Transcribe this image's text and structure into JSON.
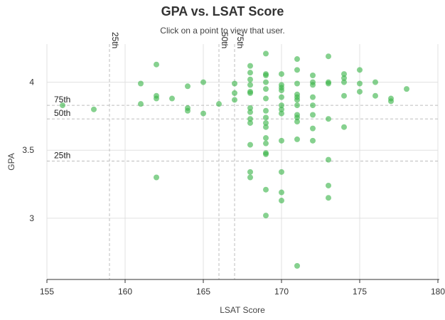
{
  "chart_data": {
    "type": "scatter",
    "title": "GPA vs. LSAT Score",
    "subtitle": "Click on a point to view that user.",
    "xlabel": "LSAT Score",
    "ylabel": "GPA",
    "xlim": [
      155,
      180
    ],
    "ylim": [
      2.55,
      4.28
    ],
    "xticks": [
      155,
      160,
      165,
      170,
      175,
      180
    ],
    "yticks": [
      3,
      3.5,
      4
    ],
    "grid": true,
    "point_color": "#3cb44b",
    "reference_lines": {
      "vertical": [
        {
          "label": "25th",
          "value": 159
        },
        {
          "label": "50th",
          "value": 166
        },
        {
          "label": "75th",
          "value": 167
        }
      ],
      "horizontal": [
        {
          "label": "75th",
          "value": 3.83
        },
        {
          "label": "50th",
          "value": 3.73
        },
        {
          "label": "25th",
          "value": 3.42
        }
      ]
    },
    "points": [
      {
        "x": 156,
        "y": 3.83
      },
      {
        "x": 158,
        "y": 3.8
      },
      {
        "x": 161,
        "y": 3.99
      },
      {
        "x": 161,
        "y": 3.84
      },
      {
        "x": 162,
        "y": 4.13
      },
      {
        "x": 162,
        "y": 3.9
      },
      {
        "x": 162,
        "y": 3.88
      },
      {
        "x": 162,
        "y": 3.3
      },
      {
        "x": 163,
        "y": 3.88
      },
      {
        "x": 164,
        "y": 3.97
      },
      {
        "x": 164,
        "y": 3.81
      },
      {
        "x": 164,
        "y": 3.79
      },
      {
        "x": 165,
        "y": 4.0
      },
      {
        "x": 165,
        "y": 3.77
      },
      {
        "x": 166,
        "y": 3.84
      },
      {
        "x": 167,
        "y": 3.99
      },
      {
        "x": 167,
        "y": 3.92
      },
      {
        "x": 167,
        "y": 3.87
      },
      {
        "x": 168,
        "y": 4.12
      },
      {
        "x": 168,
        "y": 4.07
      },
      {
        "x": 168,
        "y": 4.02
      },
      {
        "x": 168,
        "y": 3.98
      },
      {
        "x": 168,
        "y": 3.93
      },
      {
        "x": 168,
        "y": 3.92
      },
      {
        "x": 168,
        "y": 3.81
      },
      {
        "x": 168,
        "y": 3.78
      },
      {
        "x": 168,
        "y": 3.73
      },
      {
        "x": 168,
        "y": 3.7
      },
      {
        "x": 168,
        "y": 3.54
      },
      {
        "x": 168,
        "y": 3.34
      },
      {
        "x": 168,
        "y": 3.3
      },
      {
        "x": 169,
        "y": 4.21
      },
      {
        "x": 169,
        "y": 4.06
      },
      {
        "x": 169,
        "y": 4.05
      },
      {
        "x": 169,
        "y": 4.0
      },
      {
        "x": 169,
        "y": 3.95
      },
      {
        "x": 169,
        "y": 3.88
      },
      {
        "x": 169,
        "y": 3.79
      },
      {
        "x": 169,
        "y": 3.74
      },
      {
        "x": 169,
        "y": 3.7
      },
      {
        "x": 169,
        "y": 3.67
      },
      {
        "x": 169,
        "y": 3.59
      },
      {
        "x": 169,
        "y": 3.55
      },
      {
        "x": 169,
        "y": 3.48
      },
      {
        "x": 169,
        "y": 3.47
      },
      {
        "x": 169,
        "y": 3.21
      },
      {
        "x": 169,
        "y": 3.02
      },
      {
        "x": 170,
        "y": 4.06
      },
      {
        "x": 170,
        "y": 3.98
      },
      {
        "x": 170,
        "y": 3.96
      },
      {
        "x": 170,
        "y": 3.94
      },
      {
        "x": 170,
        "y": 3.89
      },
      {
        "x": 170,
        "y": 3.83
      },
      {
        "x": 170,
        "y": 3.8
      },
      {
        "x": 170,
        "y": 3.77
      },
      {
        "x": 170,
        "y": 3.57
      },
      {
        "x": 170,
        "y": 3.34
      },
      {
        "x": 170,
        "y": 3.19
      },
      {
        "x": 170,
        "y": 3.13
      },
      {
        "x": 171,
        "y": 4.17
      },
      {
        "x": 171,
        "y": 4.09
      },
      {
        "x": 171,
        "y": 3.99
      },
      {
        "x": 171,
        "y": 3.91
      },
      {
        "x": 171,
        "y": 3.89
      },
      {
        "x": 171,
        "y": 3.87
      },
      {
        "x": 171,
        "y": 3.83
      },
      {
        "x": 171,
        "y": 3.76
      },
      {
        "x": 171,
        "y": 3.74
      },
      {
        "x": 171,
        "y": 3.71
      },
      {
        "x": 171,
        "y": 3.58
      },
      {
        "x": 171,
        "y": 2.65
      },
      {
        "x": 172,
        "y": 4.05
      },
      {
        "x": 172,
        "y": 4.0
      },
      {
        "x": 172,
        "y": 3.98
      },
      {
        "x": 172,
        "y": 3.89
      },
      {
        "x": 172,
        "y": 3.83
      },
      {
        "x": 172,
        "y": 3.76
      },
      {
        "x": 172,
        "y": 3.66
      },
      {
        "x": 172,
        "y": 3.57
      },
      {
        "x": 173,
        "y": 4.19
      },
      {
        "x": 173,
        "y": 4.0
      },
      {
        "x": 173,
        "y": 3.99
      },
      {
        "x": 173,
        "y": 3.73
      },
      {
        "x": 173,
        "y": 3.43
      },
      {
        "x": 173,
        "y": 3.24
      },
      {
        "x": 173,
        "y": 3.15
      },
      {
        "x": 174,
        "y": 4.06
      },
      {
        "x": 174,
        "y": 4.03
      },
      {
        "x": 174,
        "y": 4.0
      },
      {
        "x": 174,
        "y": 3.9
      },
      {
        "x": 174,
        "y": 3.67
      },
      {
        "x": 175,
        "y": 4.09
      },
      {
        "x": 175,
        "y": 3.99
      },
      {
        "x": 175,
        "y": 3.93
      },
      {
        "x": 176,
        "y": 4.0
      },
      {
        "x": 176,
        "y": 3.9
      },
      {
        "x": 177,
        "y": 3.88
      },
      {
        "x": 177,
        "y": 3.86
      },
      {
        "x": 178,
        "y": 3.95
      }
    ]
  }
}
